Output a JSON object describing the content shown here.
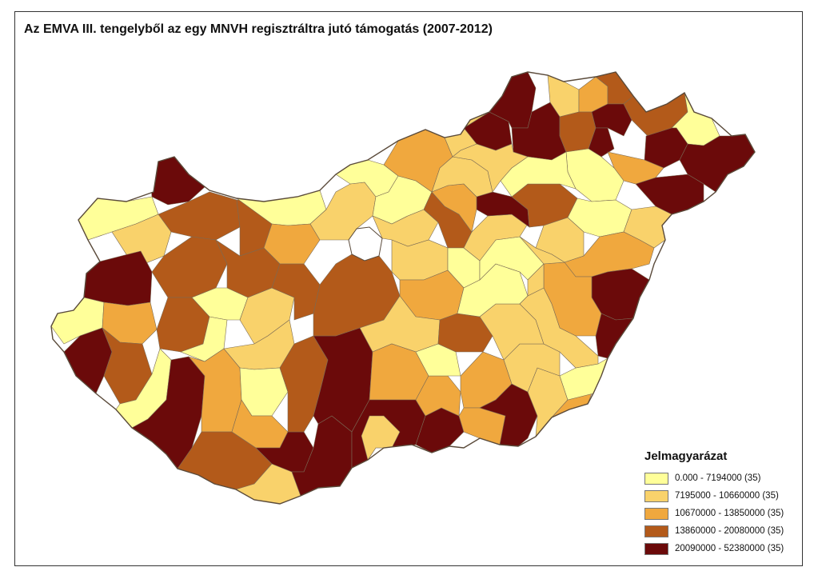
{
  "title": "Az EMVA III. tengelyből az egy MNVH regisztráltra jutó támogatás (2007-2012)",
  "legend": {
    "title": "Jelmagyarázat",
    "classes": [
      {
        "label": "0.000 - 7194000 (35)",
        "color": "#ffff99"
      },
      {
        "label": "7195000 - 10660000 (35)",
        "color": "#f9d26b"
      },
      {
        "label": "10670000 - 13850000 (35)",
        "color": "#f0a83e"
      },
      {
        "label": "13860000 - 20080000 (35)",
        "color": "#b35a1a"
      },
      {
        "label": "20090000 - 52380000 (35)",
        "color": "#6b0a0a"
      }
    ]
  },
  "colors": {
    "border": "#333333",
    "background": "#ffffff",
    "region_outline": "#7a6a55"
  }
}
